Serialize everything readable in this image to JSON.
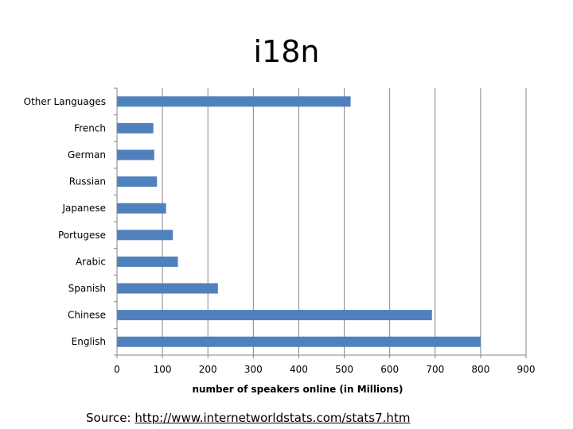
{
  "slide": {
    "title": "i18n",
    "source_prefix": "Source: ",
    "source_link": "http://www.internetworldstats.com/stats7.htm"
  },
  "chart_data": {
    "type": "bar",
    "orientation": "horizontal",
    "categories": [
      "English",
      "Chinese",
      "Spanish",
      "Arabic",
      "Portugese",
      "Japanese",
      "Russian",
      "German",
      "French",
      "Other Languages"
    ],
    "values": [
      800,
      693,
      222,
      134,
      123,
      108,
      88,
      82,
      80,
      514
    ],
    "xlabel": "number of speakers online (in Millions)",
    "ylabel": "",
    "xlim": [
      0,
      900
    ],
    "xticks": [
      0,
      100,
      200,
      300,
      400,
      500,
      600,
      700,
      800,
      900
    ],
    "grid": "vertical",
    "legend": "none",
    "bar_color": "#4f81bd",
    "grid_color": "#868686"
  }
}
